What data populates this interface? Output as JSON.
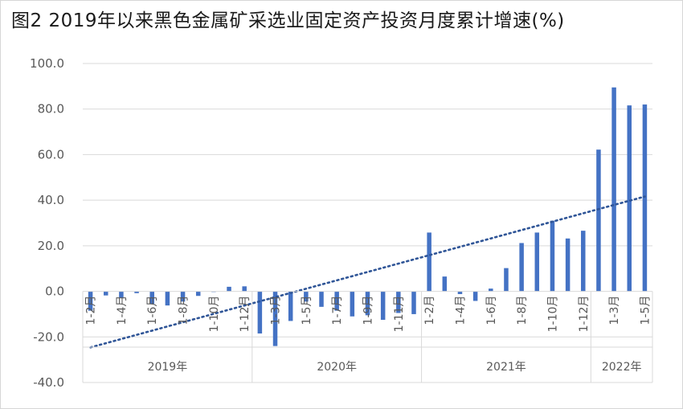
{
  "chart_data": {
    "type": "bar",
    "title": "图2  2019年以来黑色金属矿采选业固定资产投资月度累计增速(%)",
    "xlabel": "",
    "ylabel": "",
    "ylim": [
      -40,
      100
    ],
    "yticks": [
      "100.0",
      "80.0",
      "60.0",
      "40.0",
      "20.0",
      "0.0",
      "-20.0",
      "-40.0"
    ],
    "grid": true,
    "categories": [
      "1-2月",
      "1-3月",
      "1-4月",
      "1-5月",
      "1-6月",
      "1-7月",
      "1-8月",
      "1-9月",
      "1-10月",
      "1-11月",
      "1-12月",
      "1-2月",
      "1-3月",
      "1-4月",
      "1-5月",
      "1-6月",
      "1-7月",
      "1-8月",
      "1-9月",
      "1-10月",
      "1-11月",
      "1-12月",
      "1-2月",
      "1-3月",
      "1-4月",
      "1-5月",
      "1-6月",
      "1-7月",
      "1-8月",
      "1-9月",
      "1-10月",
      "1-11月",
      "1-12月",
      "1-2月",
      "1-3月",
      "1-4月",
      "1-5月"
    ],
    "tick_labels": [
      {
        "index": 0,
        "label": "1-2月"
      },
      {
        "index": 2,
        "label": "1-4月"
      },
      {
        "index": 4,
        "label": "1-6月"
      },
      {
        "index": 6,
        "label": "1-8月"
      },
      {
        "index": 8,
        "label": "1-10月"
      },
      {
        "index": 10,
        "label": "1-12月"
      },
      {
        "index": 12,
        "label": "1-3月"
      },
      {
        "index": 14,
        "label": "1-5月"
      },
      {
        "index": 16,
        "label": "1-7月"
      },
      {
        "index": 18,
        "label": "1-9月"
      },
      {
        "index": 20,
        "label": "1-11月"
      },
      {
        "index": 22,
        "label": "1-2月"
      },
      {
        "index": 24,
        "label": "1-4月"
      },
      {
        "index": 26,
        "label": "1-6月"
      },
      {
        "index": 28,
        "label": "1-8月"
      },
      {
        "index": 30,
        "label": "1-10月"
      },
      {
        "index": 32,
        "label": "1-12月"
      },
      {
        "index": 34,
        "label": "1-3月"
      },
      {
        "index": 36,
        "label": "1-5月"
      }
    ],
    "groups": [
      {
        "label": "2019年",
        "start": 0,
        "end": 10
      },
      {
        "label": "2020年",
        "start": 11,
        "end": 21
      },
      {
        "label": "2021年",
        "start": 22,
        "end": 32
      },
      {
        "label": "2022年",
        "start": 33,
        "end": 36
      }
    ],
    "values": [
      -8.5,
      -1.8,
      -3.0,
      -0.8,
      -5.5,
      -6.2,
      -4.5,
      -2.0,
      -0.3,
      2.0,
      2.2,
      -18.5,
      -24.0,
      -13.0,
      -4.5,
      -6.8,
      -8.5,
      -11.0,
      -10.5,
      -12.5,
      -9.5,
      -10.0,
      25.8,
      6.5,
      -1.2,
      -4.2,
      1.2,
      10.2,
      21.2,
      25.8,
      31.0,
      23.2,
      26.6,
      62.2,
      89.5,
      81.6,
      82.0
    ],
    "trendline": {
      "style": "dotted",
      "from": -24.6,
      "to": 41.6
    },
    "colors": {
      "bar": "#4472c4",
      "trend": "#2f5597",
      "grid": "#d9d9d9"
    }
  }
}
